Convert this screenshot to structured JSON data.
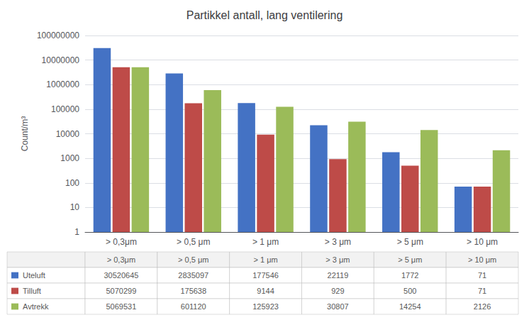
{
  "chart_data": {
    "type": "bar",
    "title": "Partikkel antall, lang ventilering",
    "y_label": "Count/m³",
    "categories": [
      "> 0,3μm",
      "> 0,5 μm",
      "> 1 μm",
      "> 3 μm",
      "> 5 μm",
      "> 10 μm"
    ],
    "series": [
      {
        "name": "Uteluft",
        "color": "#4472C4",
        "values": [
          30520645,
          2835097,
          177546,
          22119,
          1772,
          71
        ]
      },
      {
        "name": "Tilluft",
        "color": "#BE4B48",
        "values": [
          5070299,
          175638,
          9144,
          929,
          500,
          71
        ]
      },
      {
        "name": "Avtrekk",
        "color": "#9BBB59",
        "values": [
          5069531,
          601120,
          125923,
          30807,
          14254,
          2126
        ]
      }
    ],
    "log": "y",
    "ylim": [
      1,
      100000000
    ],
    "yticks": [
      1,
      10,
      100,
      1000,
      10000,
      100000,
      1000000,
      10000000,
      100000000
    ],
    "grid": true
  }
}
